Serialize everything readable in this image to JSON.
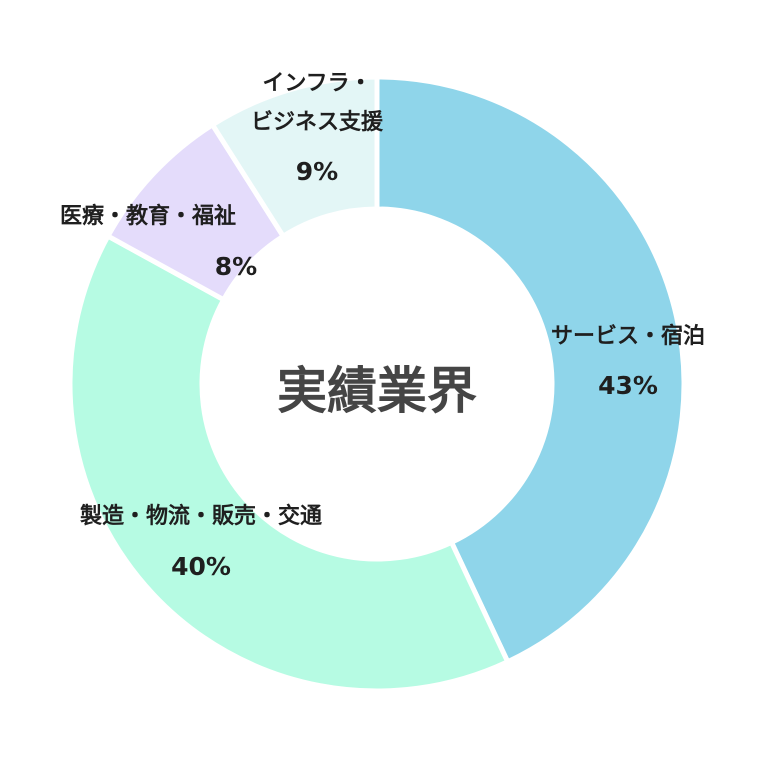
{
  "chart_data": {
    "type": "pie",
    "variant": "donut",
    "title": "実績業界",
    "slices": [
      {
        "label": "サービス・宿泊",
        "value": 43,
        "display": "43%",
        "color": "#8fd5ea"
      },
      {
        "label": "製造・物流・販売・交通",
        "value": 40,
        "display": "40%",
        "color": "#b6fbe3"
      },
      {
        "label": "医療・教育・福祉",
        "value": 8,
        "display": "8%",
        "color": "#e4dcfb"
      },
      {
        "label": "インフラ・ビジネス支援",
        "label_lines": [
          "インフラ・",
          "ビジネス支援"
        ],
        "value": 9,
        "display": "9%",
        "color": "#e3f6f6"
      }
    ]
  }
}
